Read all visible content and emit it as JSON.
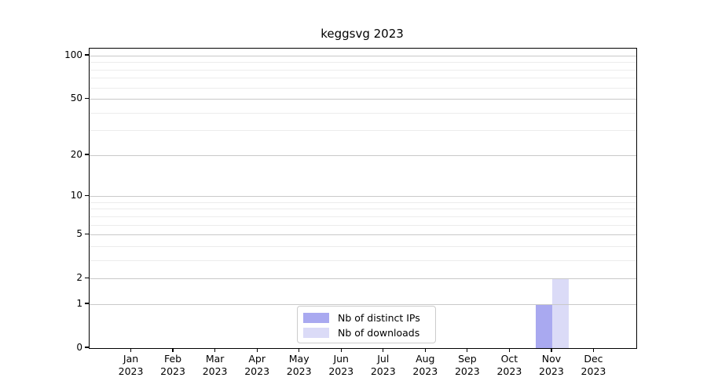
{
  "title": "keggsvg 2023",
  "chart_data": {
    "type": "bar",
    "title": "keggsvg 2023",
    "categories": [
      "Jan 2023",
      "Feb 2023",
      "Mar 2023",
      "Apr 2023",
      "May 2023",
      "Jun 2023",
      "Jul 2023",
      "Aug 2023",
      "Sep 2023",
      "Oct 2023",
      "Nov 2023",
      "Dec 2023"
    ],
    "series": [
      {
        "name": "Nb of distinct IPs",
        "color": "#a9a9f0",
        "values": [
          0,
          0,
          0,
          0,
          0,
          0,
          0,
          0,
          0,
          0,
          1,
          0
        ]
      },
      {
        "name": "Nb of downloads",
        "color": "#dbdbf7",
        "values": [
          0,
          0,
          0,
          0,
          0,
          0,
          0,
          0,
          0,
          0,
          2,
          0
        ]
      }
    ],
    "xlabel": "",
    "ylabel": "",
    "ylim": [
      0,
      100
    ],
    "y_scale": "log1p",
    "y_ticks_major": [
      0,
      1,
      2,
      5,
      10,
      20,
      50,
      100
    ],
    "y_ticks_minor": [
      3,
      4,
      6,
      7,
      8,
      9,
      30,
      40,
      60,
      70,
      80,
      90
    ],
    "grid": "horizontal major+minor, drawn above bars",
    "legend_position": "inside bottom-center"
  },
  "legend": {
    "items": [
      {
        "label": "Nb of distinct IPs",
        "color": "#a9a9f0"
      },
      {
        "label": "Nb of downloads",
        "color": "#dbdbf7"
      }
    ]
  },
  "colors": {
    "axis": "#000000",
    "grid_major": "#c9c9c9",
    "grid_minor": "#ececec",
    "text": "#000000",
    "legend_border": "#cccccc",
    "background": "#ffffff"
  }
}
